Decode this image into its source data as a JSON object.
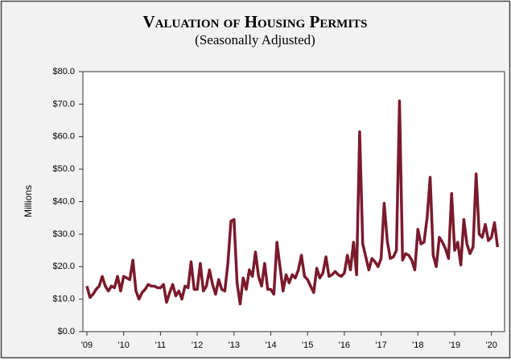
{
  "chart_data": {
    "type": "line",
    "title": "Valuation of Housing Permits",
    "subtitle": "(Seasonally Adjusted)",
    "y_label": "Millions",
    "color": "#7a1a2c",
    "grid": false,
    "ylim": [
      0,
      80
    ],
    "yticks": [
      {
        "value": 0,
        "label": "$0.0"
      },
      {
        "value": 10,
        "label": "$10.0"
      },
      {
        "value": 20,
        "label": "$20.0"
      },
      {
        "value": 30,
        "label": "$30.0"
      },
      {
        "value": 40,
        "label": "$40.0"
      },
      {
        "value": 50,
        "label": "$50.0"
      },
      {
        "value": 60,
        "label": "$60.0"
      },
      {
        "value": 70,
        "label": "$70.0"
      },
      {
        "value": 80,
        "label": "$80.0"
      }
    ],
    "categories": [
      "'09",
      null,
      null,
      null,
      null,
      null,
      null,
      null,
      null,
      null,
      null,
      null,
      "'10",
      null,
      null,
      null,
      null,
      null,
      null,
      null,
      null,
      null,
      null,
      null,
      "'11",
      null,
      null,
      null,
      null,
      null,
      null,
      null,
      null,
      null,
      null,
      null,
      "'12",
      null,
      null,
      null,
      null,
      null,
      null,
      null,
      null,
      null,
      null,
      null,
      "'13",
      null,
      null,
      null,
      null,
      null,
      null,
      null,
      null,
      null,
      null,
      null,
      "'14",
      null,
      null,
      null,
      null,
      null,
      null,
      null,
      null,
      null,
      null,
      null,
      "'15",
      null,
      null,
      null,
      null,
      null,
      null,
      null,
      null,
      null,
      null,
      null,
      "'16",
      null,
      null,
      null,
      null,
      null,
      null,
      null,
      null,
      null,
      null,
      null,
      "'17",
      null,
      null,
      null,
      null,
      null,
      null,
      null,
      null,
      null,
      null,
      null,
      "'18",
      null,
      null,
      null,
      null,
      null,
      null,
      null,
      null,
      null,
      null,
      null,
      "'19",
      null,
      null,
      null,
      null,
      null,
      null,
      null,
      null,
      null,
      null,
      null,
      "'20",
      null,
      null
    ],
    "values": [
      14,
      10.5,
      11.5,
      13,
      14,
      17,
      14,
      12.5,
      14,
      13.5,
      17,
      12.5,
      17,
      16.5,
      16,
      22,
      12.5,
      10,
      12,
      13,
      14.5,
      14,
      14,
      13.5,
      13.5,
      14.5,
      9,
      12,
      14.5,
      11,
      12.5,
      10,
      14,
      13.5,
      21.5,
      13,
      13,
      21,
      12.5,
      14,
      19,
      14.5,
      11.5,
      16,
      13,
      12.5,
      21,
      34,
      34.5,
      15,
      8.5,
      16.5,
      13,
      19,
      17,
      24.5,
      17,
      14,
      21,
      13,
      13,
      11.5,
      27.5,
      20,
      12.5,
      17.5,
      15,
      17.5,
      16.5,
      19,
      23.5,
      17,
      16,
      14,
      12,
      19.5,
      16.5,
      18,
      23,
      17,
      17.5,
      18.5,
      17.5,
      17,
      18,
      23.5,
      19,
      27.5,
      17.5,
      61.5,
      27,
      23,
      19,
      22.5,
      21.5,
      20,
      22.5,
      39.5,
      28,
      22.5,
      23,
      25,
      71,
      22,
      24,
      23.5,
      22,
      19,
      31.5,
      27,
      27.5,
      35,
      47.5,
      23.5,
      20,
      29,
      27.5,
      25.5,
      22.5,
      42.5,
      25,
      27.5,
      20.5,
      34.5,
      27,
      24,
      26,
      48.5,
      30,
      29,
      33,
      28,
      29,
      33.5,
      26
    ]
  }
}
